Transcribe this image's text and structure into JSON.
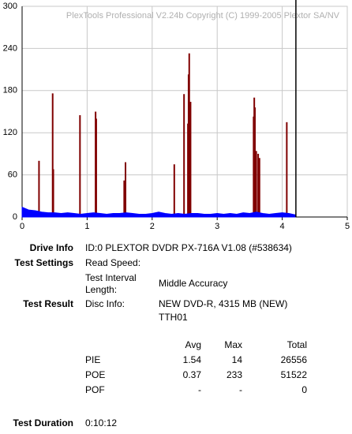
{
  "chart_data": {
    "type": "bar",
    "title": "PlexTools Professional V2.24b Copyright (C) 1999-2005 Plextor SA/NV",
    "xlim": [
      0,
      5
    ],
    "xticks": [
      0,
      1,
      2,
      3,
      4,
      5
    ],
    "ylim": [
      0,
      300
    ],
    "yticks": [
      0,
      60,
      120,
      180,
      240,
      300
    ],
    "grid": true,
    "cursor_x": 4.21,
    "series": [
      {
        "type": "bar",
        "color": "#800000",
        "x": [
          0.26,
          0.47,
          0.48,
          0.89,
          1.13,
          1.14,
          1.57,
          1.59,
          2.34,
          2.49,
          2.55,
          2.56,
          2.57,
          2.59,
          3.56,
          3.57,
          3.58,
          3.6,
          3.63,
          3.65,
          4.07
        ],
        "values": [
          80,
          176,
          68,
          145,
          150,
          140,
          52,
          78,
          75,
          175,
          133,
          203,
          233,
          164,
          143,
          170,
          156,
          94,
          90,
          84,
          135
        ]
      },
      {
        "type": "area",
        "color": "#0000ff",
        "x": [
          0,
          0.1,
          0.2,
          0.3,
          0.4,
          0.5,
          0.6,
          0.7,
          0.8,
          0.9,
          1,
          1.1,
          1.2,
          1.3,
          1.4,
          1.5,
          1.6,
          1.7,
          1.8,
          1.9,
          2,
          2.1,
          2.2,
          2.3,
          2.4,
          2.5,
          2.6,
          2.7,
          2.8,
          2.9,
          3,
          3.1,
          3.2,
          3.3,
          3.4,
          3.5,
          3.6,
          3.7,
          3.8,
          3.9,
          4,
          4.1,
          4.2
        ],
        "values": [
          14,
          10,
          9,
          7,
          6,
          6,
          5,
          6,
          5,
          4,
          5,
          6,
          5,
          4,
          5,
          5,
          6,
          5,
          4,
          4,
          5,
          7,
          5,
          4,
          5,
          4,
          5,
          5,
          4,
          4,
          5,
          4,
          5,
          4,
          6,
          5,
          7,
          5,
          4,
          5,
          6,
          5,
          3
        ]
      }
    ]
  },
  "report": {
    "drive_info": {
      "label": "Drive Info",
      "value": "ID:0 PLEXTOR DVDR PX-716A V1.08 (#538634)"
    },
    "test_settings": {
      "label": "Test Settings",
      "read_speed": "Read Speed:",
      "interval_label": [
        "Test Interval",
        "Length:"
      ],
      "interval_value": "Middle Accuracy"
    },
    "test_result": {
      "label": "Test Result",
      "disc_label": "Disc Info:",
      "disc_value": [
        "NEW DVD-R, 4315 MB (NEW)",
        "TTH01"
      ]
    },
    "table": {
      "header": [
        "Avg",
        "Max",
        "Total"
      ],
      "rows": [
        [
          "PIE",
          1.54,
          14,
          26556
        ],
        [
          "POE",
          0.37,
          233,
          51522
        ],
        [
          "POF",
          "-",
          "-",
          0
        ]
      ]
    },
    "duration": {
      "label": "Test Duration",
      "value": "0:10:12"
    }
  }
}
